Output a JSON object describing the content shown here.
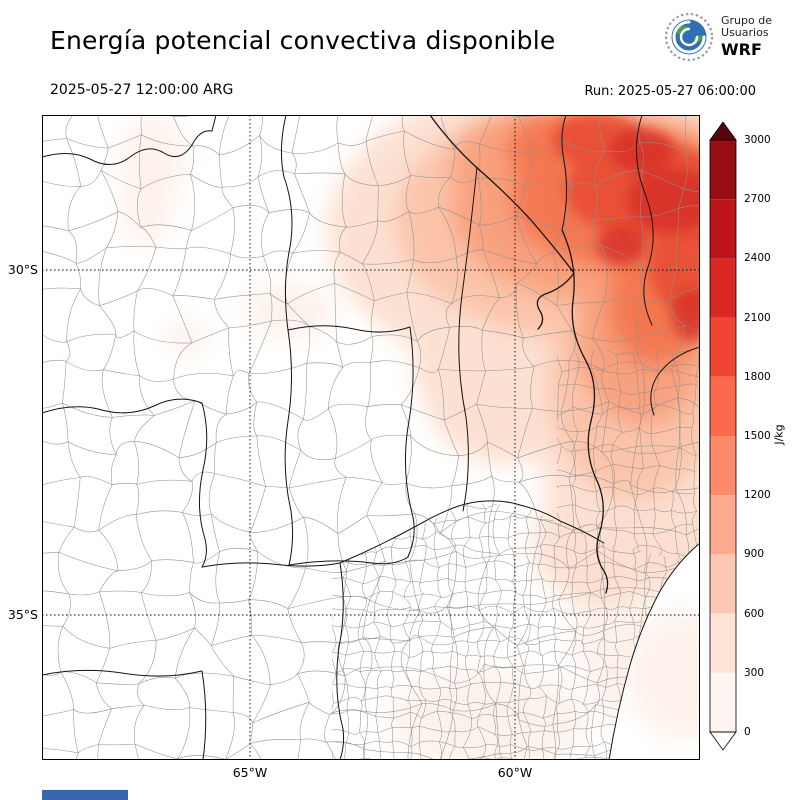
{
  "header": {
    "title": "Energía potencial convectiva disponible",
    "valid_time": "2025-05-27 12:00:00 ARG",
    "run_label": "Run: 2025-05-27 06:00:00",
    "logo": {
      "line1": "Grupo de",
      "line2": "Usuarios",
      "line3": "WRF"
    }
  },
  "map": {
    "lat_ticks": [
      "30°S",
      "35°S"
    ],
    "lon_ticks": [
      "65°W",
      "60°W"
    ]
  },
  "colorbar": {
    "unit": "J/kg",
    "tick_values": [
      "0",
      "300",
      "600",
      "900",
      "1200",
      "1500",
      "1800",
      "2100",
      "2400",
      "2700",
      "3000"
    ],
    "segment_colors": [
      "#fff5f0",
      "#fee3d7",
      "#fdc9b4",
      "#fcab8f",
      "#fc8a6b",
      "#f9694c",
      "#ef4533",
      "#d92723",
      "#bb141a",
      "#980c13"
    ],
    "arrow_over_color": "#5a020e",
    "arrow_under_color": "#ffffff"
  },
  "chart_data": {
    "type": "heatmap",
    "title": "Energía potencial convectiva disponible",
    "unit": "J/kg",
    "levels": [
      0,
      300,
      600,
      900,
      1200,
      1500,
      1800,
      2100,
      2400,
      2700,
      3000
    ],
    "lat_tick_labels": [
      "30°S",
      "35°S"
    ],
    "lon_tick_labels": [
      "65°W",
      "60°W"
    ],
    "legend_position": "right",
    "description": "CAPE field over central/northern Argentina: maximum values around 1500-2400 J/kg in the northeast (upper-right of map), moderate 300-900 J/kg along the east, near 0 over the west and south."
  }
}
